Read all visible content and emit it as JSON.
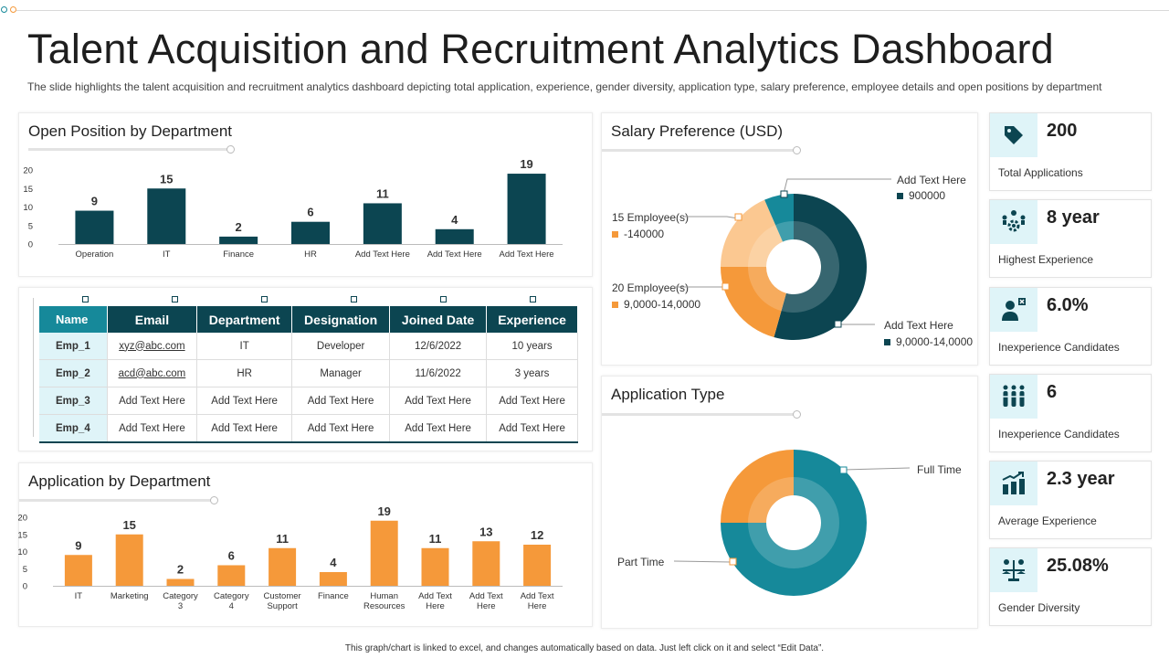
{
  "header": {
    "title": "Talent Acquisition and Recruitment Analytics Dashboard",
    "subtitle": "The slide highlights the talent acquisition and recruitment analytics dashboard depicting total application, experience, gender diversity, application type, salary preference, employee details and open positions by department"
  },
  "colors": {
    "dark_teal": "#0c4551",
    "teal": "#16899a",
    "orange": "#f5993a",
    "light_orange": "#fbc891",
    "light_cyan": "#dff4f8"
  },
  "chart_data": [
    {
      "id": "open_position",
      "type": "bar",
      "title": "Open Position by Department",
      "categories": [
        "Operation",
        "IT",
        "Finance",
        "HR",
        "Add Text Here",
        "Add Text Here",
        "Add Text Here"
      ],
      "values": [
        9,
        15,
        2,
        6,
        11,
        4,
        19
      ],
      "yticks": [
        "0",
        "5",
        "10",
        "15",
        "20"
      ],
      "ylim": [
        0,
        20
      ],
      "color": "#0c4551"
    },
    {
      "id": "application_by_department",
      "type": "bar",
      "title": "Application by Department",
      "categories": [
        "IT",
        "Marketing",
        "Category 3",
        "Category 4",
        "Customer Support",
        "Finance",
        "Human Resources",
        "Add Text Here",
        "Add Text Here",
        "Add Text Here"
      ],
      "values": [
        9,
        15,
        2,
        6,
        11,
        4,
        19,
        11,
        13,
        12
      ],
      "yticks": [
        "0",
        "5",
        "10",
        "15",
        "20"
      ],
      "ylim": [
        0,
        20
      ],
      "color": "#f5993a"
    },
    {
      "id": "salary_preference",
      "type": "pie",
      "title": "Salary Preference (USD)",
      "slices": [
        {
          "value": 50,
          "color": "#0c4551"
        },
        {
          "value": 19,
          "color": "#f5993a"
        },
        {
          "value": 17,
          "color": "#fbc891"
        },
        {
          "value": 6,
          "color": "#16899a"
        }
      ],
      "labels": [
        {
          "title": "Add Text Here",
          "value": "900000",
          "swatch": "#0c4551"
        },
        {
          "title": "15 Employee(s)",
          "value": "-140000",
          "swatch": "#f5993a"
        },
        {
          "title": "20 Employee(s)",
          "value": "9,0000-14,0000",
          "swatch": "#f5993a"
        },
        {
          "title": "Add Text Here",
          "value": "9,0000-14,0000",
          "swatch": "#0c4551"
        }
      ]
    },
    {
      "id": "application_type",
      "type": "pie",
      "title": "Application Type",
      "slices": [
        {
          "label": "Full Time",
          "value": 75,
          "color": "#16899a"
        },
        {
          "label": "Part Time",
          "value": 25,
          "color": "#f5993a"
        }
      ]
    }
  ],
  "employees": {
    "headers": [
      "Name",
      "Email",
      "Department",
      "Designation",
      "Joined Date",
      "Experience"
    ],
    "rows": [
      [
        "Emp_1",
        "xyz@abc.com",
        "IT",
        "Developer",
        "12/6/2022",
        "10 years"
      ],
      [
        "Emp_2",
        "acd@abc.com",
        "HR",
        "Manager",
        "11/6/2022",
        "3 years"
      ],
      [
        "Emp_3",
        "Add Text Here",
        "Add Text Here",
        "Add Text Here",
        "Add Text Here",
        "Add Text Here"
      ],
      [
        "Emp_4",
        "Add Text Here",
        "Add Text Here",
        "Add Text Here",
        "Add Text Here",
        "Add Text Here"
      ]
    ]
  },
  "kpis": [
    {
      "value": "200",
      "label": "Total Applications",
      "icon": "tag-icon"
    },
    {
      "value": "8 year",
      "label": "Highest Experience",
      "icon": "team-gear-icon"
    },
    {
      "value": "6.0%",
      "label": "Inexperience Candidates",
      "icon": "user-x-icon"
    },
    {
      "value": "6",
      "label": "Inexperience Candidates",
      "icon": "people-group-icon"
    },
    {
      "value": "2.3 year",
      "label": "Average Experience",
      "icon": "growth-chart-icon"
    },
    {
      "value": "25.08%",
      "label": "Gender Diversity",
      "icon": "gender-balance-icon"
    }
  ],
  "footer": "This graph/chart is linked to excel, and changes automatically based on data. Just left click on it and select “Edit Data”."
}
